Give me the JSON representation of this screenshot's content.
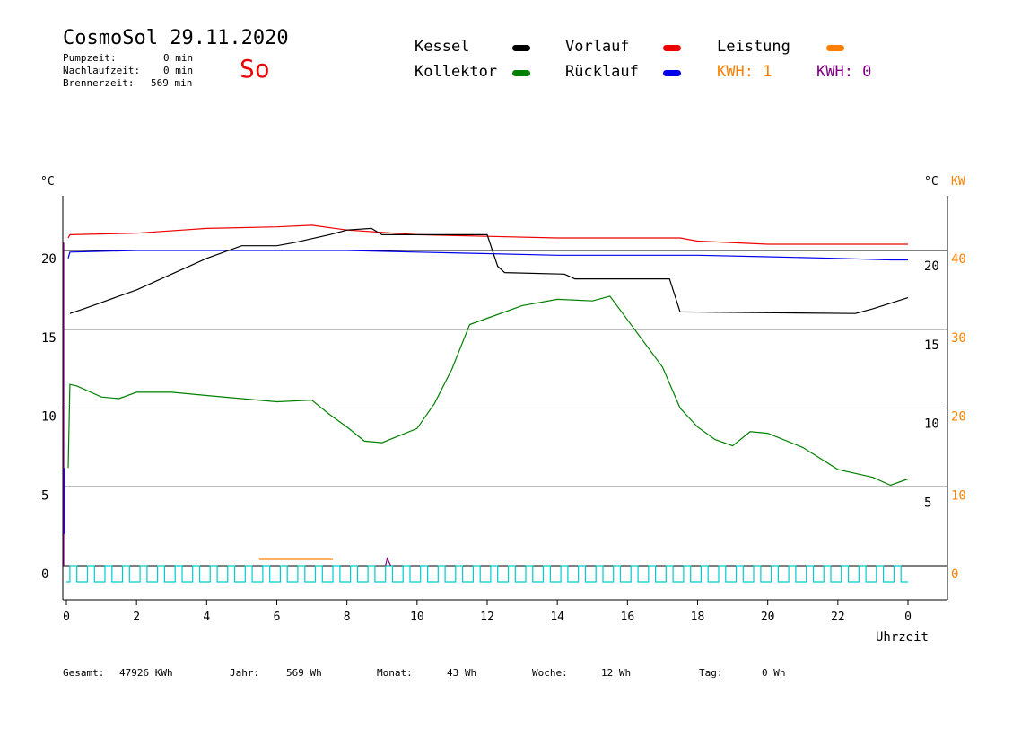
{
  "header": {
    "title": "CosmoSol 29.11.2020",
    "pump_label": "Pumpzeit:",
    "pump_value": "0 min",
    "follow_label": "Nachlaufzeit:",
    "follow_value": "0 min",
    "burner_label": "Brennerzeit:",
    "burner_value": "569 min",
    "day": "So"
  },
  "legend": {
    "kessel": {
      "label": "Kessel",
      "color": "#000000"
    },
    "kollektor": {
      "label": "Kollektor",
      "color": "#008000"
    },
    "vorlauf": {
      "label": "Vorlauf",
      "color": "#ee0000"
    },
    "ruecklauf": {
      "label": "Rücklauf",
      "color": "#0000ee"
    },
    "leistung": {
      "label": "Leistung",
      "color": "#ff8000"
    },
    "kwh1": "KWH: 1",
    "kwh2": "KWH: 0",
    "kwh1_color": "#ff8000",
    "kwh2_color": "#800080"
  },
  "footer": {
    "gesamt_label": "Gesamt:",
    "gesamt_value": "47926 KWh",
    "jahr_label": "Jahr:",
    "jahr_value": "569 Wh",
    "monat_label": "Monat:",
    "monat_value": "43 Wh",
    "woche_label": "Woche:",
    "woche_value": "12 Wh",
    "tag_label": "Tag:",
    "tag_value": "0 Wh"
  },
  "chart_data": {
    "type": "line",
    "xlabel": "Uhrzeit",
    "x_ticks": [
      "0",
      "2",
      "4",
      "6",
      "8",
      "10",
      "12",
      "14",
      "16",
      "18",
      "20",
      "22",
      "0"
    ],
    "xlim": [
      0,
      24
    ],
    "left_unit": "°C",
    "right_unit_c": "°C",
    "right_unit_kw": "KW",
    "left_ticks": [
      "0",
      "5",
      "10",
      "15",
      "20"
    ],
    "right_ticks_c": [
      "5",
      "10",
      "15",
      "20"
    ],
    "right_ticks_kw": [
      "0",
      "10",
      "20",
      "30",
      "40"
    ],
    "ylim": [
      0,
      24
    ],
    "grid": true,
    "series": [
      {
        "name": "Vorlauf",
        "color": "#ee0000",
        "x": [
          0.05,
          0.1,
          2,
          4,
          6,
          7,
          8,
          10,
          12,
          14,
          16,
          17.5,
          18,
          20,
          22,
          24
        ],
        "y": [
          20.8,
          21.0,
          21.1,
          21.4,
          21.5,
          21.6,
          21.3,
          21.0,
          20.9,
          20.8,
          20.8,
          20.8,
          20.6,
          20.4,
          20.4,
          20.4
        ]
      },
      {
        "name": "Rücklauf",
        "color": "#0000ee",
        "x": [
          0.05,
          0.1,
          2,
          4,
          6,
          8,
          10,
          12,
          14,
          16,
          18,
          20,
          22,
          23.5,
          24
        ],
        "y": [
          19.5,
          19.9,
          20.0,
          20.0,
          20.0,
          20.0,
          19.9,
          19.8,
          19.7,
          19.7,
          19.7,
          19.6,
          19.5,
          19.4,
          19.4
        ],
        "note": ""
      },
      {
        "name": "Kessel",
        "color": "#000000",
        "x": [
          0.1,
          0.5,
          1,
          2,
          3,
          4,
          5,
          6,
          6.5,
          7.5,
          8.0,
          8.7,
          9,
          9.5,
          10,
          12,
          12.3,
          12.5,
          14.2,
          14.5,
          16,
          17.2,
          17.5,
          22.5,
          23,
          24
        ],
        "y": [
          16.0,
          16.3,
          16.7,
          17.5,
          18.5,
          19.5,
          20.3,
          20.3,
          20.5,
          21.0,
          21.3,
          21.4,
          21.0,
          21.0,
          21.0,
          21.0,
          19.0,
          18.6,
          18.5,
          18.2,
          18.2,
          18.2,
          16.1,
          16.0,
          16.3,
          17.0
        ]
      },
      {
        "name": "Kollektor",
        "color": "#008000",
        "x": [
          0.05,
          0.1,
          0.3,
          1,
          1.5,
          2,
          3,
          4,
          5,
          6,
          7,
          7.5,
          8,
          8.5,
          9,
          10,
          10.5,
          11,
          11.5,
          12,
          13,
          14,
          15,
          15.5,
          16,
          17,
          17.5,
          18,
          18.5,
          19,
          19.5,
          20,
          21,
          22,
          23,
          23.5,
          24
        ],
        "y": [
          6.2,
          11.5,
          11.4,
          10.7,
          10.6,
          11.0,
          11.0,
          10.8,
          10.6,
          10.4,
          10.5,
          9.6,
          8.8,
          7.9,
          7.8,
          8.7,
          10.3,
          12.5,
          15.3,
          15.7,
          16.5,
          16.9,
          16.8,
          17.1,
          15.6,
          12.6,
          10.0,
          8.8,
          8.0,
          7.6,
          8.5,
          8.4,
          7.5,
          6.1,
          5.6,
          5.1,
          5.5
        ]
      },
      {
        "name": "Leistung",
        "color": "#ff8000",
        "x": [
          5.5,
          7.6
        ],
        "y": [
          0.4,
          0.4
        ]
      }
    ]
  }
}
